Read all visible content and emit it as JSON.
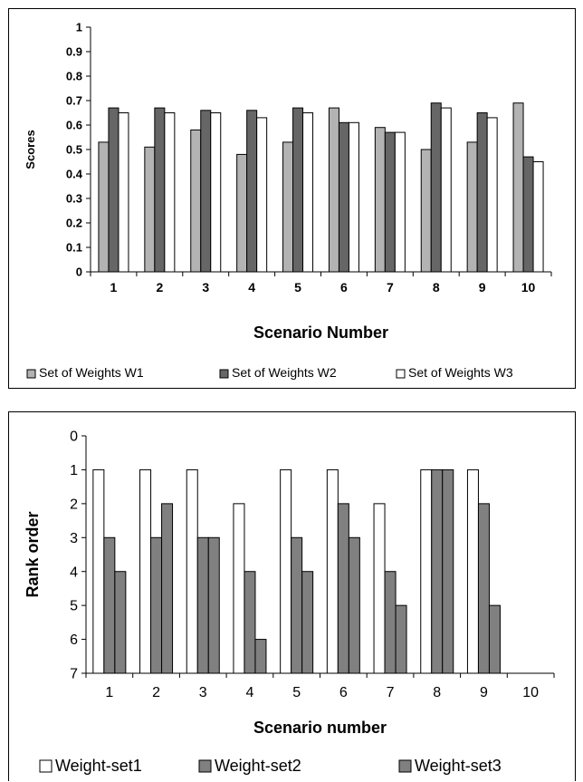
{
  "chart_data": [
    {
      "type": "bar",
      "title": "",
      "xlabel": "Scenario Number",
      "ylabel": "Scores",
      "ylim": [
        0,
        1
      ],
      "yticks": [
        "0",
        "0.1",
        "0.2",
        "0.3",
        "0.4",
        "0.5",
        "0.6",
        "0.7",
        "0.8",
        "0.9",
        "1"
      ],
      "categories": [
        "1",
        "2",
        "3",
        "4",
        "5",
        "6",
        "7",
        "8",
        "9",
        "10"
      ],
      "grid": false,
      "legend_position": "bottom",
      "series": [
        {
          "name": "Set of Weights W1",
          "color": "#b3b3b3",
          "values": [
            0.53,
            0.51,
            0.58,
            0.48,
            0.53,
            0.67,
            0.59,
            0.5,
            0.53,
            0.69
          ]
        },
        {
          "name": "Set of Weights W2",
          "color": "#666666",
          "values": [
            0.67,
            0.67,
            0.66,
            0.66,
            0.67,
            0.61,
            0.57,
            0.69,
            0.65,
            0.47
          ]
        },
        {
          "name": "Set of Weights W3",
          "color": "#ffffff",
          "values": [
            0.65,
            0.65,
            0.65,
            0.63,
            0.65,
            0.61,
            0.57,
            0.67,
            0.63,
            0.45
          ]
        }
      ]
    },
    {
      "type": "bar",
      "title": "",
      "xlabel": "Scenario number",
      "ylabel": "Rank order",
      "ylim": [
        0,
        7
      ],
      "y_inverted": true,
      "yticks": [
        "0",
        "1",
        "2",
        "3",
        "4",
        "5",
        "6",
        "7"
      ],
      "categories": [
        "1",
        "2",
        "3",
        "4",
        "5",
        "6",
        "7",
        "8",
        "9",
        "10"
      ],
      "grid": false,
      "legend_position": "bottom",
      "series": [
        {
          "name": "Weight-set1",
          "color": "#ffffff",
          "values": [
            1,
            1,
            1,
            2,
            1,
            1,
            2,
            1,
            1,
            null
          ]
        },
        {
          "name": "Weight-set2",
          "color": "#808080",
          "values": [
            3,
            3,
            3,
            4,
            3,
            2,
            4,
            1,
            2,
            null
          ]
        },
        {
          "name": "Weight-set3",
          "color": "#808080",
          "values": [
            4,
            2,
            3,
            6,
            4,
            3,
            5,
            1,
            5,
            null
          ]
        }
      ]
    }
  ]
}
